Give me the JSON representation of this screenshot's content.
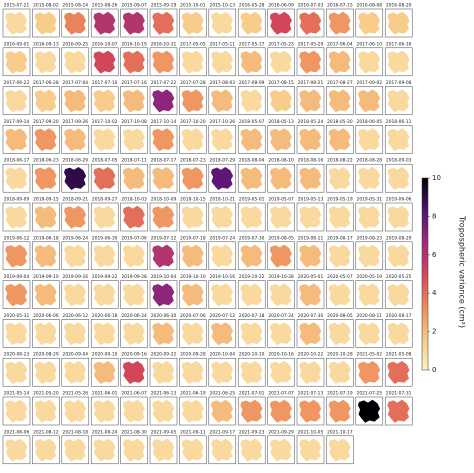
{
  "chart_data": {
    "type": "small-multiples",
    "colorbar_label": "Tropospheric variance (cm²)",
    "clim": [
      0,
      10
    ],
    "cticks": [
      0,
      2,
      4,
      6,
      8,
      10
    ],
    "colormap": [
      "#fcf4c4",
      "#f7c784",
      "#ee8a5a",
      "#d2465a",
      "#9c2a7c",
      "#4f1275",
      "#000004"
    ],
    "categories": [
      "2015-07-21",
      "2015-08-02",
      "2015-08-14",
      "2015-08-26",
      "2015-09-07",
      "2015-09-19",
      "2015-10-01",
      "2015-10-13",
      "2016-05-28",
      "2016-06-09",
      "2016-07-03",
      "2016-07-15",
      "2016-08-08",
      "2016-08-20",
      "2016-09-01",
      "2016-09-13",
      "2016-09-25",
      "2016-10-07",
      "2016-10-19",
      "2016-10-31",
      "2017-05-05",
      "2017-05-11",
      "2017-05-17",
      "2017-05-23",
      "2017-05-29",
      "2017-06-04",
      "2017-06-10",
      "2017-06-16",
      "2017-06-22",
      "2017-06-28",
      "2017-07-04",
      "2017-07-10",
      "2017-07-16",
      "2017-07-22",
      "2017-07-28",
      "2017-08-03",
      "2017-08-09",
      "2017-08-15",
      "2017-08-21",
      "2017-08-27",
      "2017-09-02",
      "2017-09-08",
      "2017-09-14",
      "2017-09-20",
      "2017-09-26",
      "2017-10-02",
      "2017-10-08",
      "2017-10-14",
      "2017-10-20",
      "2017-10-26",
      "2018-05-07",
      "2018-05-13",
      "2018-05-24",
      "2018-05-30",
      "2018-06-05",
      "2018-06-11",
      "2018-06-17",
      "2018-06-23",
      "2018-06-29",
      "2018-07-05",
      "2018-07-11",
      "2018-07-17",
      "2018-07-23",
      "2018-07-29",
      "2018-08-04",
      "2018-08-10",
      "2018-08-16",
      "2018-08-22",
      "2018-08-28",
      "2018-09-03",
      "2018-09-09",
      "2018-09-15",
      "2018-09-21",
      "2018-09-27",
      "2018-10-03",
      "2018-10-09",
      "2018-10-15",
      "2018-10-21",
      "2019-05-01",
      "2019-05-07",
      "2019-05-13",
      "2019-05-19",
      "2019-05-31",
      "2019-06-06",
      "2019-06-12",
      "2019-06-18",
      "2019-06-24",
      "2019-06-30",
      "2019-07-06",
      "2019-07-12",
      "2019-07-18",
      "2019-07-24",
      "2019-07-30",
      "2019-08-05",
      "2019-08-11",
      "2019-08-17",
      "2019-08-23",
      "2019-08-29",
      "2019-09-04",
      "2019-09-10",
      "2019-09-16",
      "2019-09-22",
      "2019-09-28",
      "2019-10-04",
      "2019-10-10",
      "2019-10-16",
      "2019-10-22",
      "2019-10-28",
      "2020-05-01",
      "2020-05-07",
      "2020-05-19",
      "2020-05-25",
      "2020-05-31",
      "2020-06-06",
      "2020-06-12",
      "2020-06-18",
      "2020-06-24",
      "2020-06-30",
      "2020-07-06",
      "2020-07-12",
      "2020-07-18",
      "2020-07-24",
      "2020-07-30",
      "2020-08-05",
      "2020-08-11",
      "2020-08-17",
      "2020-08-23",
      "2020-08-29",
      "2020-09-04",
      "2020-09-10",
      "2020-09-16",
      "2020-09-22",
      "2020-09-28",
      "2020-10-04",
      "2020-10-10",
      "2020-10-16",
      "2020-10-22",
      "2020-10-28",
      "2021-05-02",
      "2021-05-08",
      "2021-05-14",
      "2021-05-20",
      "2021-05-26",
      "2021-06-01",
      "2021-06-07",
      "2021-06-13",
      "2021-06-19",
      "2021-06-25",
      "2021-07-01",
      "2021-07-07",
      "2021-07-13",
      "2021-07-19",
      "2021-07-25",
      "2021-07-31",
      "2021-08-06",
      "2021-08-12",
      "2021-08-18",
      "2021-08-24",
      "2021-08-30",
      "2021-09-05",
      "2021-09-11",
      "2021-09-17",
      "2021-09-23",
      "2021-09-29",
      "2021-10-05",
      "2021-10-17"
    ],
    "values": [
      1,
      1.5,
      3.5,
      6,
      6,
      4,
      1.5,
      1,
      1.5,
      5,
      4,
      3,
      1.5,
      1.5,
      1.5,
      1,
      1,
      5,
      4,
      3,
      1,
      1,
      2,
      1,
      3,
      2,
      1,
      1,
      1,
      1.5,
      2,
      1.5,
      2,
      7,
      3,
      2,
      1,
      1.5,
      2,
      2,
      2,
      1,
      2,
      3,
      2,
      1,
      1,
      3,
      1,
      1,
      2,
      2,
      2,
      2,
      1,
      1,
      1,
      3,
      9,
      4,
      2,
      2,
      3,
      8,
      2,
      2,
      2,
      1,
      1,
      1,
      1,
      2,
      3,
      1,
      4,
      3,
      1,
      1,
      1,
      1,
      1,
      1,
      1,
      1,
      3,
      2,
      1,
      1,
      1,
      6,
      2,
      1,
      2,
      3,
      2,
      1,
      1,
      1,
      3,
      2,
      1,
      1,
      1,
      7,
      2,
      1,
      1,
      1,
      2,
      1,
      1,
      1,
      1,
      1,
      1,
      1,
      1,
      2,
      1,
      2,
      1,
      1,
      2,
      1,
      1,
      1,
      1,
      1,
      1,
      2,
      5,
      1,
      1,
      1,
      1,
      1,
      1,
      1,
      3,
      4,
      1,
      1,
      1,
      1,
      1,
      1,
      1,
      2,
      3,
      3,
      3,
      3,
      10,
      4,
      1,
      1,
      1,
      1,
      1,
      1,
      1,
      1,
      1,
      1,
      1,
      1
    ]
  }
}
